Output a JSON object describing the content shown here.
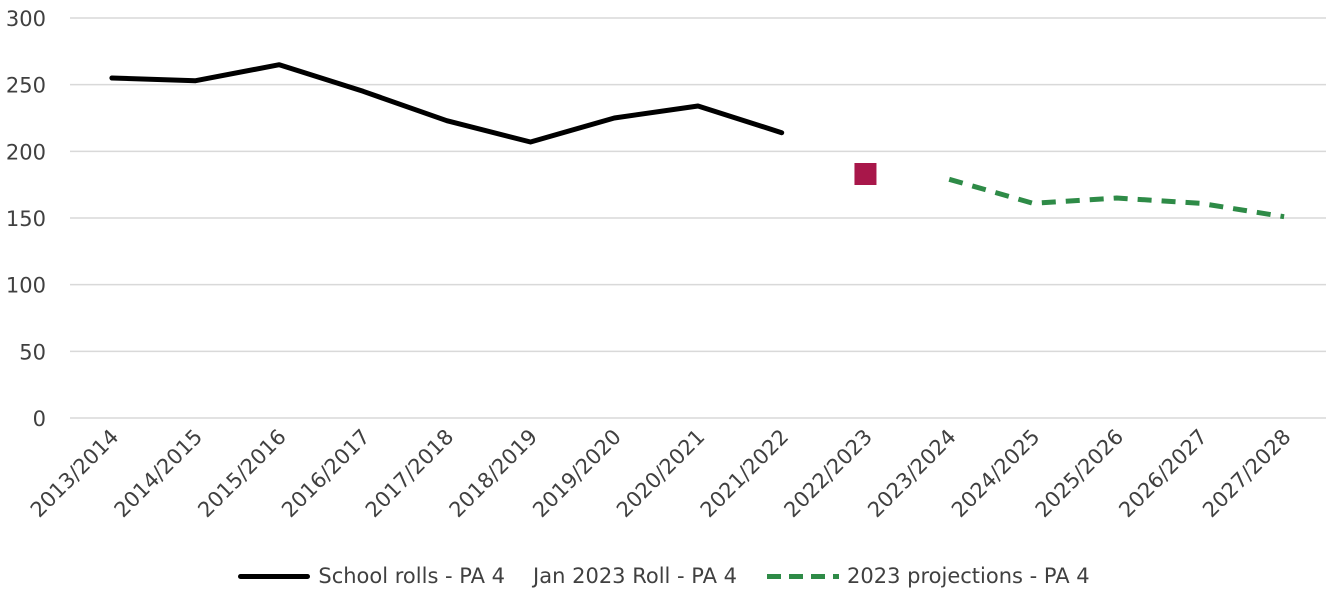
{
  "chart_data": {
    "type": "line",
    "categories": [
      "2013/2014",
      "2014/2015",
      "2015/2016",
      "2016/2017",
      "2017/2018",
      "2018/2019",
      "2019/2020",
      "2020/2021",
      "2021/2022",
      "2022/2023",
      "2023/2024",
      "2024/2025",
      "2025/2026",
      "2026/2027",
      "2027/2028"
    ],
    "ylim": [
      0,
      300
    ],
    "yticks": [
      "0",
      "50",
      "100",
      "150",
      "200",
      "250",
      "300"
    ],
    "grid": true,
    "legend_position": "bottom",
    "series": [
      {
        "name": "School rolls - PA 4",
        "color": "#000000",
        "style": "solid",
        "values": [
          255,
          253,
          265,
          245,
          223,
          207,
          225,
          234,
          214,
          null,
          null,
          null,
          null,
          null,
          null
        ]
      },
      {
        "name": "Jan 2023 Roll - PA 4",
        "color": "#a8174a",
        "style": "marker",
        "values": [
          null,
          null,
          null,
          null,
          null,
          null,
          null,
          null,
          null,
          183,
          null,
          null,
          null,
          null,
          null
        ]
      },
      {
        "name": "2023 projections - PA 4",
        "color": "#2e8b47",
        "style": "dashed",
        "values": [
          null,
          null,
          null,
          null,
          null,
          null,
          null,
          null,
          null,
          null,
          179,
          161,
          165,
          161,
          151
        ]
      }
    ]
  }
}
